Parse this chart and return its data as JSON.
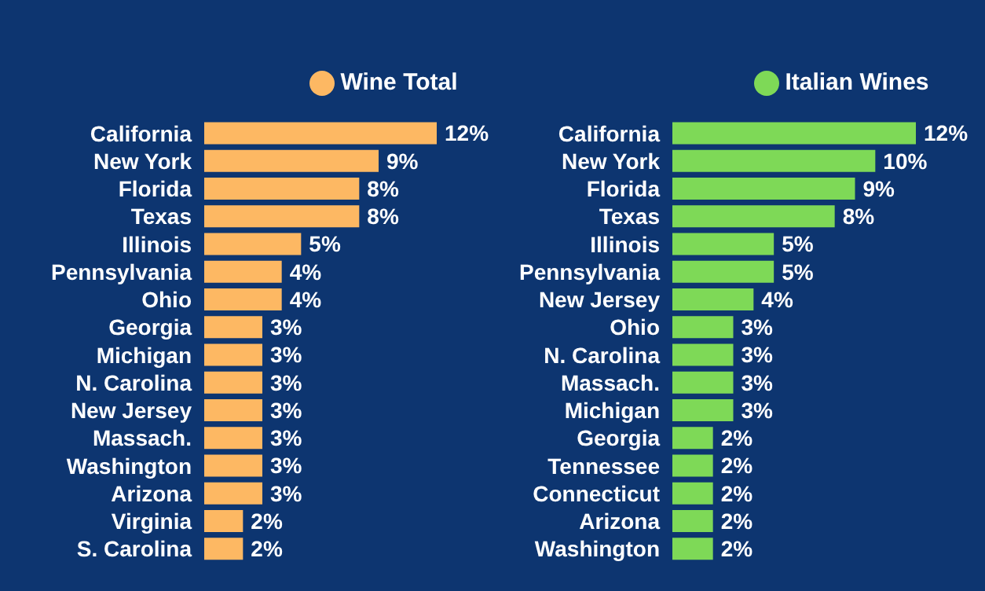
{
  "chart_data": [
    {
      "type": "bar",
      "orientation": "horizontal",
      "legend": "top",
      "categories": [
        "California",
        "New York",
        "Florida",
        "Texas",
        "Illinois",
        "Pennsylvania",
        "Ohio",
        "Georgia",
        "Michigan",
        "N. Carolina",
        "New Jersey",
        "Massach.",
        "Washington",
        "Arizona",
        "Virginia",
        "S. Carolina"
      ],
      "series": [
        {
          "name": "Wine Total",
          "color": "#fdb863",
          "values": [
            12,
            9,
            8,
            8,
            5,
            4,
            4,
            3,
            3,
            3,
            3,
            3,
            3,
            3,
            2,
            2
          ],
          "value_labels": [
            "12%",
            "9%",
            "8%",
            "8%",
            "5%",
            "4%",
            "4%",
            "3%",
            "3%",
            "3%",
            "3%",
            "3%",
            "3%",
            "3%",
            "2%",
            "2%"
          ]
        }
      ]
    },
    {
      "type": "bar",
      "orientation": "horizontal",
      "legend": "top",
      "categories": [
        "California",
        "New York",
        "Florida",
        "Texas",
        "Illinois",
        "Pennsylvania",
        "New Jersey",
        "Ohio",
        "N. Carolina",
        "Massach.",
        "Michigan",
        "Georgia",
        "Tennessee",
        "Connecticut",
        "Arizona",
        "Washington"
      ],
      "series": [
        {
          "name": "Italian Wines",
          "color": "#7ed957",
          "values": [
            12,
            10,
            9,
            8,
            5,
            5,
            4,
            3,
            3,
            3,
            3,
            2,
            2,
            2,
            2,
            2
          ],
          "value_labels": [
            "12%",
            "10%",
            "9%",
            "8%",
            "5%",
            "5%",
            "4%",
            "3%",
            "3%",
            "3%",
            "3%",
            "2%",
            "2%",
            "2%",
            "2%",
            "2%"
          ]
        }
      ]
    }
  ]
}
